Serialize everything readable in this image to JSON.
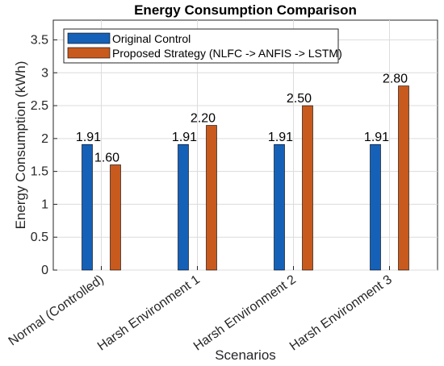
{
  "chart_data": {
    "type": "bar",
    "title": "Energy Consumption Comparison",
    "xlabel": "Scenarios",
    "ylabel": "Energy Consumption (kWh)",
    "ylim": [
      0,
      3.8
    ],
    "yticks": [
      0,
      0.5,
      1,
      1.5,
      2,
      2.5,
      3,
      3.5
    ],
    "grid": true,
    "legend_position": "top-left",
    "categories": [
      "Normal (Controlled)",
      "Harsh Environment 1",
      "Harsh Environment 2",
      "Harsh Environment 3"
    ],
    "series": [
      {
        "name": "Original Control",
        "values": [
          1.91,
          1.91,
          1.91,
          1.91
        ],
        "color": "#1661b8",
        "labels": [
          "1.91",
          "1.91",
          "1.91",
          "1.91"
        ]
      },
      {
        "name": "Proposed Strategy (NLFC -> ANFIS -> LSTM)",
        "values": [
          1.6,
          2.2,
          2.5,
          2.8
        ],
        "color": "#c85a1e",
        "labels": [
          "1.60",
          "2.20",
          "2.50",
          "2.80"
        ]
      }
    ]
  }
}
